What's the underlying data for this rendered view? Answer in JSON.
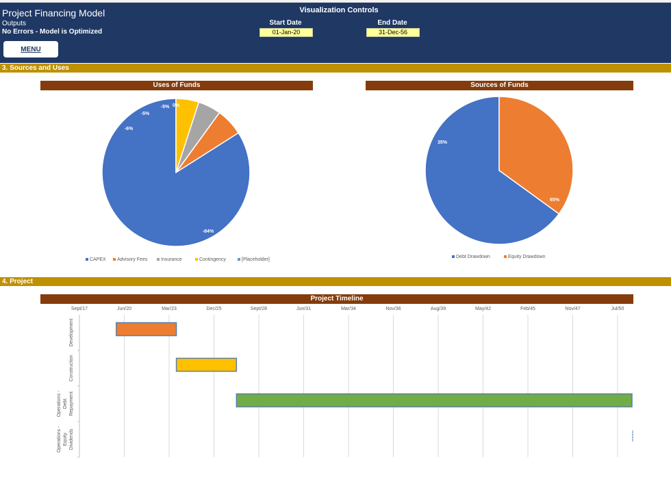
{
  "header": {
    "title": "Project Financing Model",
    "outputs_label": "Outputs",
    "status": "No Errors - Model is Optimized",
    "menu_label": "MENU",
    "viz_title": "Visualization Controls",
    "start_date_label": "Start Date",
    "start_date_value": "01-Jan-20",
    "end_date_label": "End Date",
    "end_date_value": "31-Dec-56"
  },
  "sections": {
    "sources_uses": "3.  Sources and Uses",
    "project": "4.  Project"
  },
  "colors": {
    "navy": "#1f3864",
    "gold": "#bf9000",
    "brown": "#843c0c",
    "blue": "#4472c4",
    "orange": "#ed7d31",
    "gray": "#a5a5a5",
    "yellow": "#ffc000",
    "lightblue": "#5b9bd5",
    "green": "#70ad47"
  },
  "chart_data": [
    {
      "type": "pie",
      "title": "Uses of Funds",
      "categories": [
        "CAPEX",
        "Advisory Fees",
        "Insurance",
        "Contingency",
        "[Placeholder]"
      ],
      "values": [
        -84,
        -6,
        -5,
        -5,
        0
      ],
      "data_labels": [
        "-84%",
        "-6%",
        "-5%",
        "-5%",
        "0%"
      ],
      "legend": "bottom",
      "colors": [
        "#4472c4",
        "#ed7d31",
        "#a5a5a5",
        "#ffc000",
        "#5b9bd5"
      ]
    },
    {
      "type": "pie",
      "title": "Sources of Funds",
      "categories": [
        "Debt Drawdown",
        "Equity Drawdown"
      ],
      "values": [
        65,
        35
      ],
      "data_labels": [
        "65%",
        "35%"
      ],
      "legend": "bottom",
      "colors": [
        "#4472c4",
        "#ed7d31"
      ]
    },
    {
      "type": "bar",
      "title": "Project Timeline",
      "categories": [
        "Development",
        "Construction",
        "Operations - Debt Repayment",
        "Operations - Equity Dividends"
      ],
      "x_tick_labels": [
        "Sept/17",
        "Jun/20",
        "Mar/23",
        "Dec/25",
        "Sept/28",
        "Jun/31",
        "Mar/34",
        "Nov/36",
        "Aug/39",
        "May/42",
        "Feb/45",
        "Nov/47",
        "Jul/50"
      ],
      "x_range": [
        "2017-09-01",
        "2050-07-01"
      ],
      "series": [
        {
          "category": "Development",
          "start": "2019-12-01",
          "end": "2023-08-01",
          "color": "#ed7d31"
        },
        {
          "category": "Construction",
          "start": "2023-08-01",
          "end": "2027-04-01",
          "color": "#ffc000"
        },
        {
          "category": "Operations - Debt Repayment",
          "start": "2027-04-01",
          "end": "2054-12-01",
          "color": "#70ad47"
        },
        {
          "category": "Operations - Equity Dividends",
          "start": "2054-12-01",
          "end": "2073-06-01",
          "color": "#4472c4"
        }
      ],
      "legend": "none",
      "grid": "vertical"
    }
  ]
}
